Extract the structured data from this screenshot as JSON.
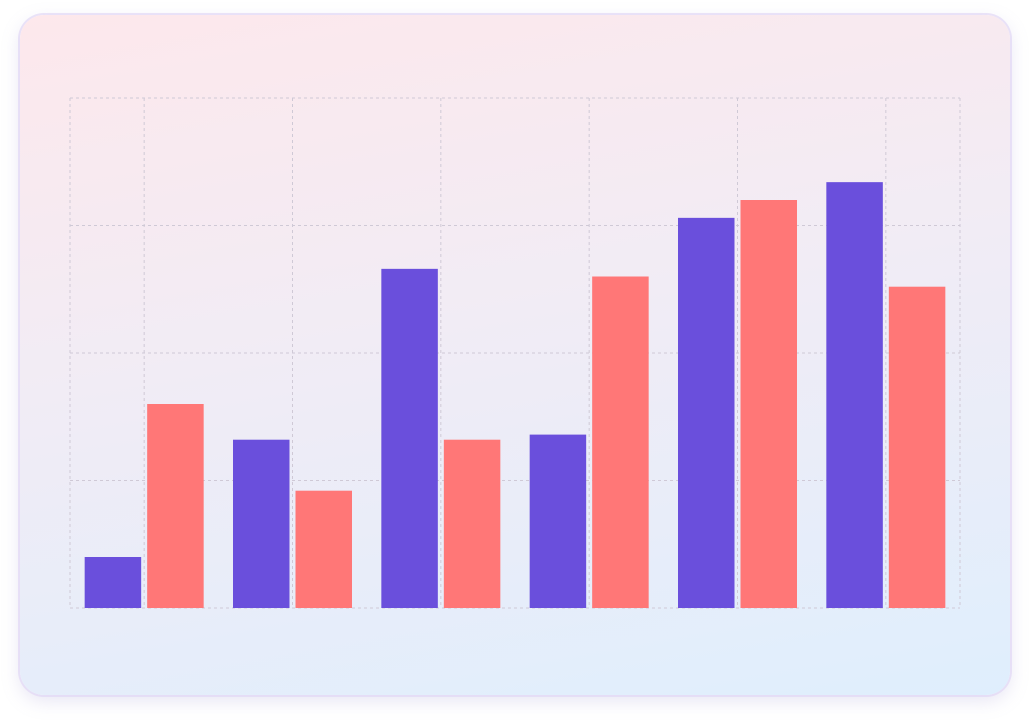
{
  "chart_data": {
    "type": "bar",
    "categories": [
      "",
      "",
      "",
      "",
      "",
      ""
    ],
    "series": [
      {
        "color": "#6a4fdc",
        "values": [
          2.0,
          6.6,
          13.3,
          6.8,
          15.3,
          16.7
        ]
      },
      {
        "color": "#ff7777",
        "values": [
          8.0,
          4.6,
          6.6,
          13.0,
          16.0,
          12.6
        ]
      }
    ],
    "ylim": [
      0,
      20
    ],
    "grid": true,
    "legend": "none"
  }
}
